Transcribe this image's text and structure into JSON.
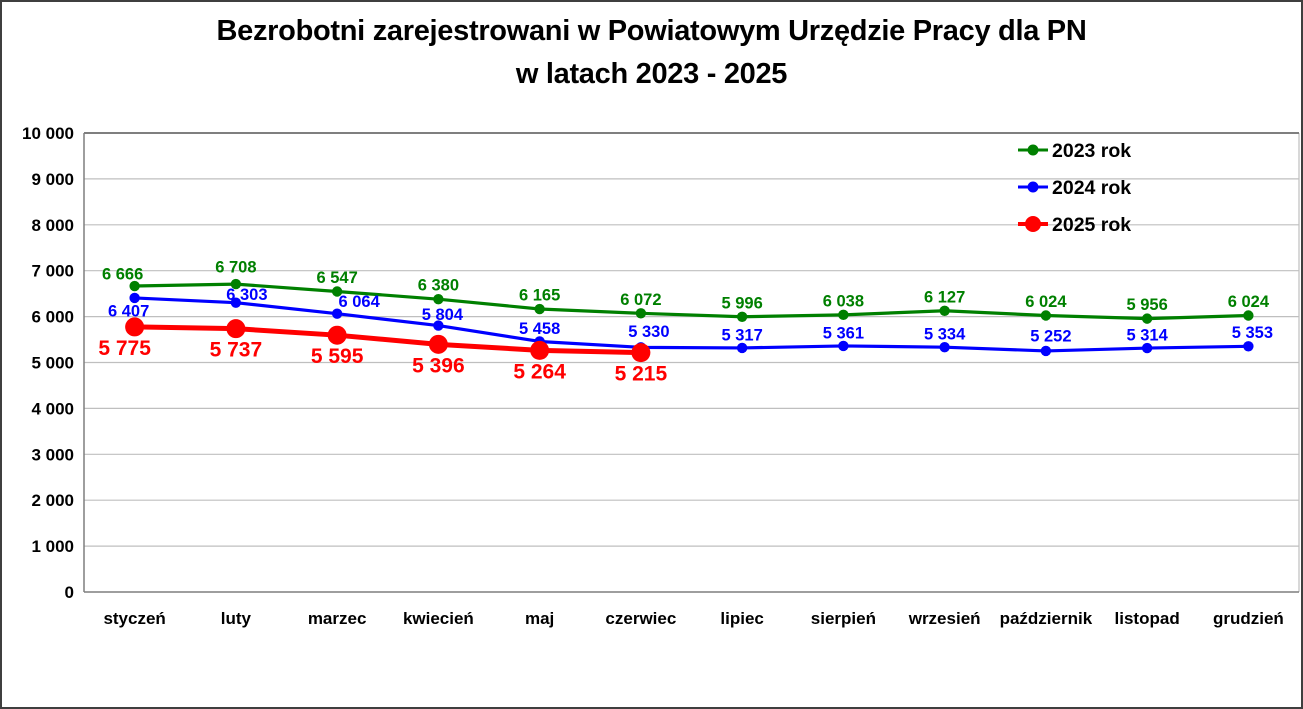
{
  "title": {
    "line1": "Bezrobotni zarejestrowani w Powiatowym Urzędzie Pracy dla PN",
    "line2": "w latach 2023 - 2025"
  },
  "chart_data": {
    "type": "line",
    "title": "Bezrobotni zarejestrowani w Powiatowym Urzędzie Pracy dla PN w latach 2023 - 2025",
    "categories": [
      "styczeń",
      "luty",
      "marzec",
      "kwiecień",
      "maj",
      "czerwiec",
      "lipiec",
      "sierpień",
      "wrzesień",
      "październik",
      "listopad",
      "grudzień"
    ],
    "series": [
      {
        "name": "2023 rok",
        "color": "#008000",
        "values": [
          6666,
          6708,
          6547,
          6380,
          6165,
          6072,
          5996,
          6038,
          6127,
          6024,
          5956,
          6024
        ]
      },
      {
        "name": "2024 rok",
        "color": "#0000ff",
        "values": [
          6407,
          6303,
          6064,
          5804,
          5458,
          5330,
          5317,
          5361,
          5334,
          5252,
          5314,
          5353
        ]
      },
      {
        "name": "2025 rok",
        "color": "#ff0000",
        "values": [
          5775,
          5737,
          5595,
          5396,
          5264,
          5215,
          null,
          null,
          null,
          null,
          null,
          null
        ]
      }
    ],
    "ylim": [
      0,
      10000
    ],
    "ytick_step": 1000,
    "ytick_labels": [
      "0",
      "1 000",
      "2 000",
      "3 000",
      "4 000",
      "5 000",
      "6 000",
      "7 000",
      "8 000",
      "9 000",
      "10 000"
    ],
    "grid": true,
    "legend_position": "top-right",
    "data_labels": true,
    "number_format": "space-thousands",
    "colors": {
      "gridline": "#bfbfbf",
      "axis": "#7f7f7f",
      "text": "#000000",
      "background": "#ffffff"
    }
  }
}
